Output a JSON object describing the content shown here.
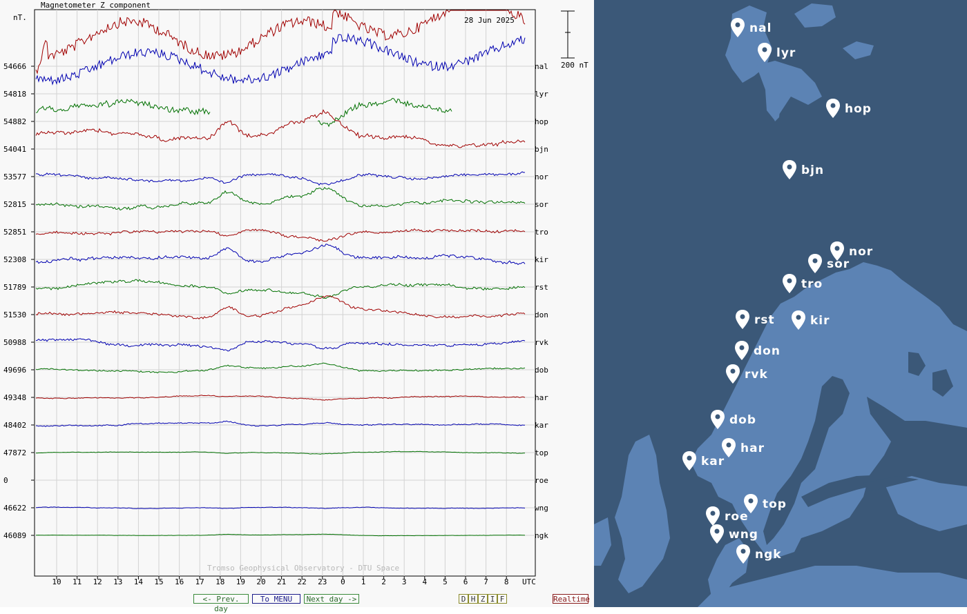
{
  "header": {
    "chart_title": "Magnetometer Z component",
    "unit_label": "nT.",
    "date_label": "28 Jun 2025",
    "scale_label": "200 nT",
    "footer_credit": "Tromso Geophysical Observatory - DTU Space",
    "utc_label": "UTC"
  },
  "nav": {
    "prev_day": "<- Prev. day",
    "menu": "To MENU",
    "next_day": "Next day ->",
    "components": [
      "D",
      "H",
      "Z",
      "I",
      "F"
    ],
    "realtime": "Realtime"
  },
  "colors": {
    "red": "#a00000",
    "blue": "#0000b0",
    "green": "#007000",
    "map_sea": "#3b5878",
    "map_land": "#5c83b4"
  },
  "chart_data": {
    "type": "line",
    "title": "Magnetometer Z component",
    "ylabel": "nT.",
    "xlabel": "UTC",
    "x_ticks": [
      "10",
      "11",
      "12",
      "13",
      "14",
      "15",
      "16",
      "17",
      "18",
      "19",
      "20",
      "21",
      "22",
      "23",
      "0",
      "1",
      "2",
      "3",
      "4",
      "5",
      "6",
      "7",
      "8"
    ],
    "scale_bar_nT": 200,
    "grid": true,
    "series": [
      {
        "station": "nal",
        "baseline": "54666",
        "color": "red"
      },
      {
        "station": "lyr",
        "baseline": "54818",
        "color": "blue"
      },
      {
        "station": "hop",
        "baseline": "54882",
        "color": "green"
      },
      {
        "station": "bjn",
        "baseline": "54041",
        "color": "red"
      },
      {
        "station": "nor",
        "baseline": "53577",
        "color": "blue"
      },
      {
        "station": "sor",
        "baseline": "52815",
        "color": "green"
      },
      {
        "station": "tro",
        "baseline": "52851",
        "color": "red"
      },
      {
        "station": "kir",
        "baseline": "52308",
        "color": "blue"
      },
      {
        "station": "rst",
        "baseline": "51789",
        "color": "green"
      },
      {
        "station": "don",
        "baseline": "51530",
        "color": "red"
      },
      {
        "station": "rvk",
        "baseline": "50988",
        "color": "blue"
      },
      {
        "station": "dob",
        "baseline": "49696",
        "color": "green"
      },
      {
        "station": "har",
        "baseline": "49348",
        "color": "red"
      },
      {
        "station": "kar",
        "baseline": "48402",
        "color": "blue"
      },
      {
        "station": "top",
        "baseline": "47872",
        "color": "green"
      },
      {
        "station": "roe",
        "baseline": "0",
        "color": "red"
      },
      {
        "station": "wng",
        "baseline": "46622",
        "color": "blue"
      },
      {
        "station": "ngk",
        "baseline": "46089",
        "color": "green"
      }
    ]
  },
  "map": {
    "stations": [
      "nal",
      "lyr",
      "hop",
      "bjn",
      "nor",
      "sor",
      "tro",
      "rst",
      "kir",
      "don",
      "rvk",
      "dob",
      "har",
      "kar",
      "top",
      "roe",
      "wng",
      "ngk"
    ]
  }
}
